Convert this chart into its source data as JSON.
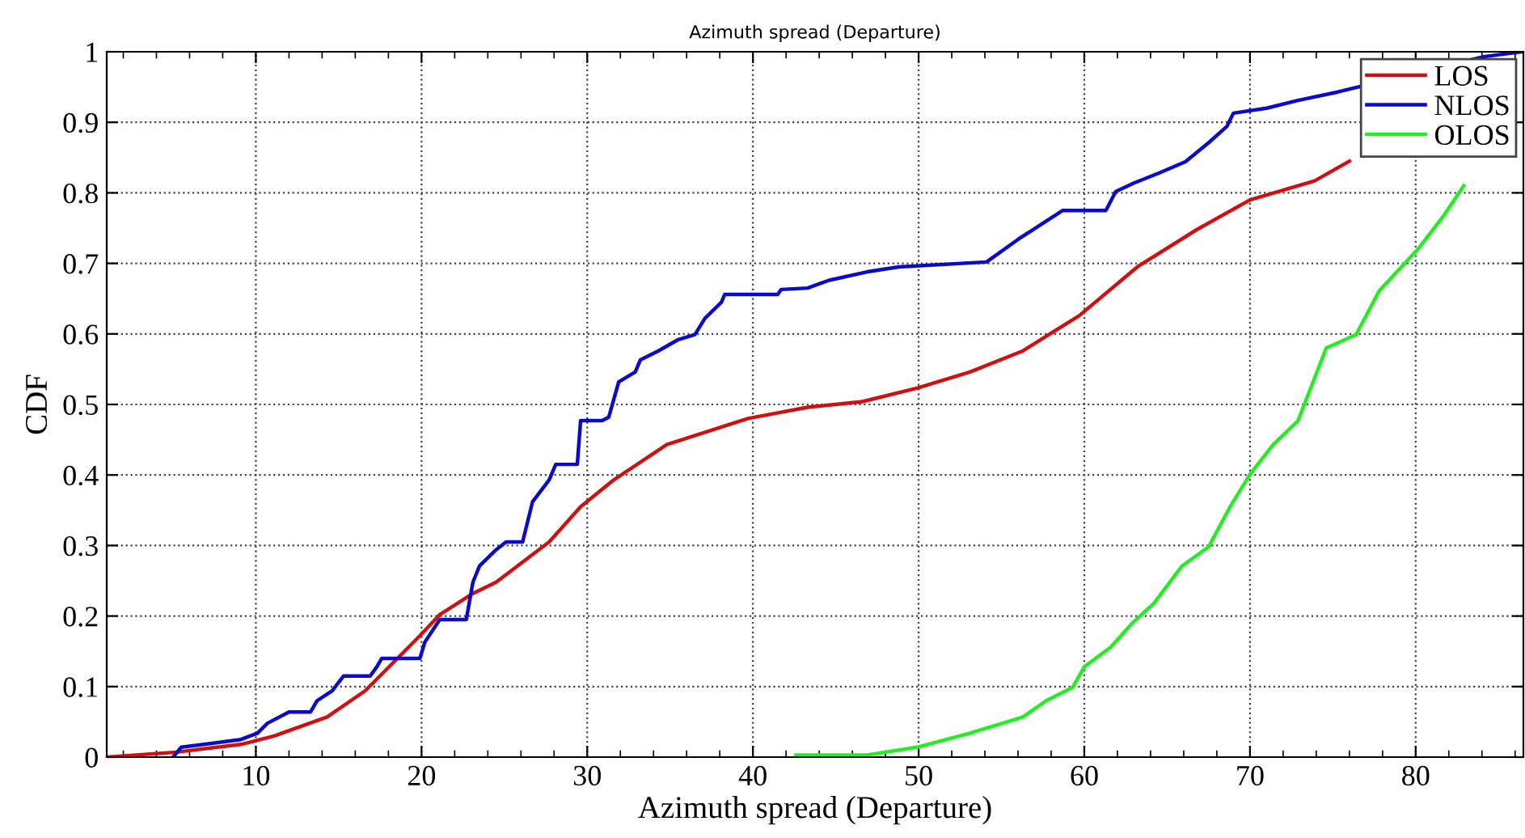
{
  "chart_data": {
    "type": "line",
    "title": "Azimuth spread (Departure)",
    "xlabel": "Azimuth spread (Departure)",
    "ylabel": "CDF",
    "xlim": [
      1,
      86.5
    ],
    "xticks": [
      10,
      20,
      30,
      40,
      50,
      60,
      70,
      80
    ],
    "ylim": [
      0,
      1
    ],
    "yticks": [
      0,
      0.1,
      0.2,
      0.3,
      0.4,
      0.5,
      0.6,
      0.7,
      0.8,
      0.9,
      1
    ],
    "grid": true,
    "legend": "top right",
    "marker": "none",
    "line_style": "solid",
    "series": [
      {
        "name": "LOS",
        "color": "#d01010",
        "x": [
          1,
          5.2,
          9.1,
          11.1,
          14.3,
          16.6,
          19.9,
          21.1,
          23.1,
          24.5,
          27.7,
          29.6,
          31.6,
          34.8,
          39.7,
          43.3,
          46.6,
          49.9,
          53.1,
          56.3,
          59.7,
          63.2,
          66.8,
          70.0,
          73.9,
          76.0
        ],
        "values": [
          0,
          0.007,
          0.018,
          0.03,
          0.057,
          0.094,
          0.172,
          0.202,
          0.232,
          0.248,
          0.305,
          0.355,
          0.393,
          0.443,
          0.48,
          0.496,
          0.504,
          0.523,
          0.546,
          0.576,
          0.626,
          0.695,
          0.748,
          0.79,
          0.817,
          0.845
        ]
      },
      {
        "name": "NLOS",
        "color": "#0a0acc",
        "x": [
          5.0,
          5.5,
          9.1,
          10.1,
          10.7,
          12.0,
          13.3,
          13.7,
          14.6,
          15.3,
          16.9,
          17.3,
          17.6,
          19.9,
          20.2,
          21.1,
          22.7,
          23.1,
          23.5,
          24.5,
          25.1,
          26.1,
          26.7,
          27.7,
          28.1,
          29.4,
          29.6,
          30.9,
          31.3,
          31.6,
          31.9,
          32.9,
          33.2,
          34.3,
          35.5,
          36.5,
          37.1,
          38.1,
          38.3,
          41.5,
          41.7,
          43.3,
          44.6,
          46.9,
          48.8,
          54.1,
          56.0,
          57.7,
          58.7,
          61.3,
          61.9,
          63.0,
          64.5,
          66.1,
          67.5,
          68.6,
          69.0,
          71.0,
          72.9,
          75.3,
          84.1,
          86.4
        ],
        "values": [
          0,
          0.014,
          0.025,
          0.034,
          0.048,
          0.064,
          0.064,
          0.08,
          0.094,
          0.115,
          0.115,
          0.128,
          0.14,
          0.14,
          0.163,
          0.195,
          0.195,
          0.248,
          0.271,
          0.294,
          0.305,
          0.305,
          0.362,
          0.393,
          0.415,
          0.415,
          0.477,
          0.477,
          0.482,
          0.507,
          0.532,
          0.546,
          0.563,
          0.576,
          0.592,
          0.599,
          0.622,
          0.645,
          0.656,
          0.656,
          0.663,
          0.665,
          0.676,
          0.688,
          0.695,
          0.702,
          0.734,
          0.76,
          0.775,
          0.775,
          0.802,
          0.814,
          0.828,
          0.844,
          0.871,
          0.894,
          0.913,
          0.92,
          0.931,
          0.943,
          0.993,
          1.0
        ]
      },
      {
        "name": "OLOS",
        "color": "#22ee22",
        "x": [
          42.6,
          46.9,
          49.9,
          53.1,
          56.3,
          57.7,
          59.3,
          60.0,
          61.6,
          62.9,
          64.2,
          65.9,
          67.5,
          68.8,
          70.0,
          71.4,
          72.9,
          74.6,
          76.4,
          77.8,
          80.2,
          81.7,
          82.9
        ],
        "values": [
          0.003,
          0.003,
          0.014,
          0.034,
          0.057,
          0.08,
          0.099,
          0.128,
          0.156,
          0.19,
          0.218,
          0.271,
          0.298,
          0.355,
          0.401,
          0.443,
          0.477,
          0.58,
          0.599,
          0.661,
          0.722,
          0.768,
          0.81
        ]
      }
    ]
  }
}
